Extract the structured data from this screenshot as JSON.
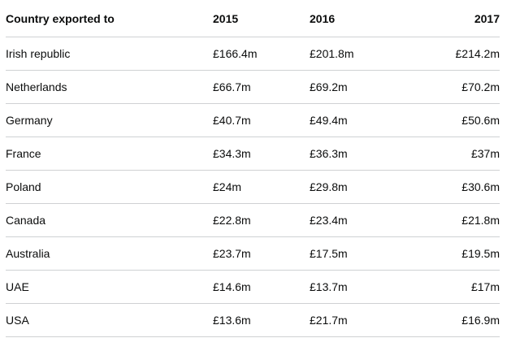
{
  "table": {
    "headers": [
      "Country exported to",
      "2015",
      "2016",
      "2017"
    ],
    "rows": [
      {
        "country": "Irish republic",
        "y2015": "£166.4m",
        "y2016": "£201.8m",
        "y2017": "£214.2m"
      },
      {
        "country": "Netherlands",
        "y2015": "£66.7m",
        "y2016": "£69.2m",
        "y2017": "£70.2m"
      },
      {
        "country": "Germany",
        "y2015": "£40.7m",
        "y2016": "£49.4m",
        "y2017": "£50.6m"
      },
      {
        "country": "France",
        "y2015": "£34.3m",
        "y2016": "£36.3m",
        "y2017": "£37m"
      },
      {
        "country": "Poland",
        "y2015": "£24m",
        "y2016": "£29.8m",
        "y2017": "£30.6m"
      },
      {
        "country": "Canada",
        "y2015": "£22.8m",
        "y2016": "£23.4m",
        "y2017": "£21.8m"
      },
      {
        "country": "Australia",
        "y2015": "£23.7m",
        "y2016": "£17.5m",
        "y2017": "£19.5m"
      },
      {
        "country": "UAE",
        "y2015": "£14.6m",
        "y2016": "£13.7m",
        "y2017": "£17m"
      },
      {
        "country": "USA",
        "y2015": "£13.6m",
        "y2016": "£21.7m",
        "y2017": "£16.9m"
      }
    ]
  }
}
